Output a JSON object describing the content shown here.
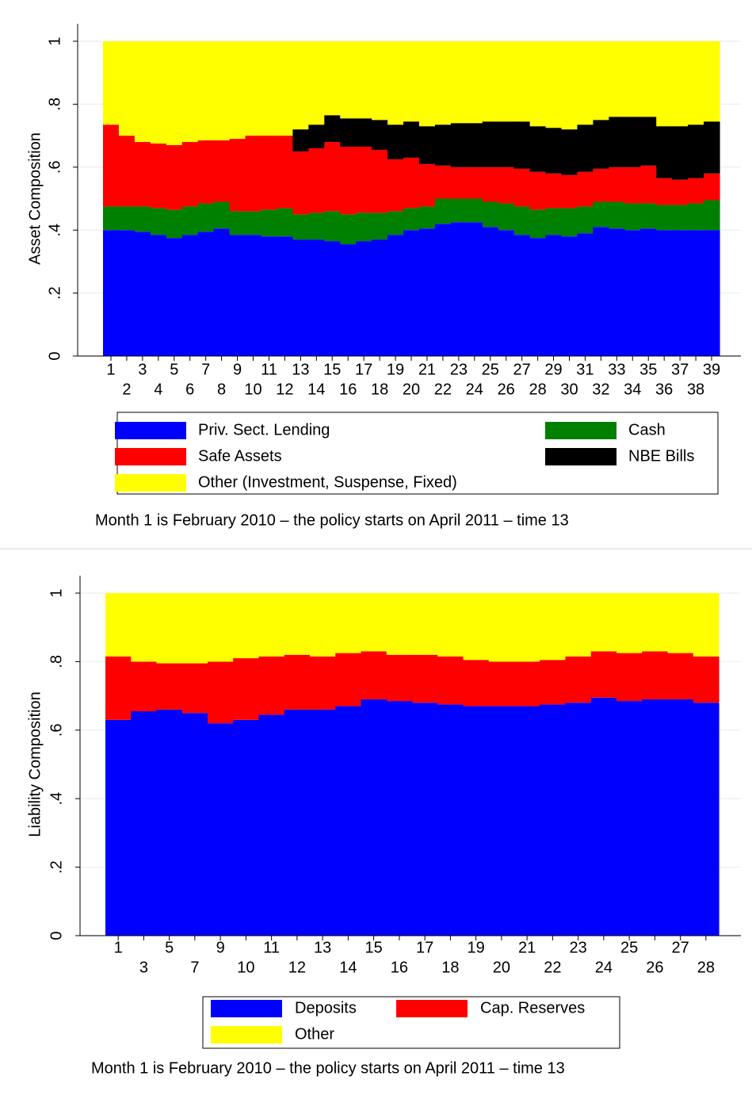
{
  "chart_data": [
    {
      "type": "bar",
      "stacked": true,
      "ylabel": "Asset Composition",
      "note": "Month 1 is February 2010 – the policy starts on April 2011 – time 13",
      "categories": [
        "1",
        "2",
        "3",
        "4",
        "5",
        "6",
        "7",
        "8",
        "9",
        "10",
        "11",
        "12",
        "13",
        "14",
        "15",
        "16",
        "17",
        "18",
        "19",
        "20",
        "21",
        "22",
        "23",
        "24",
        "25",
        "26",
        "27",
        "28",
        "29",
        "30",
        "31",
        "32",
        "33",
        "34",
        "35",
        "36",
        "37",
        "38",
        "39"
      ],
      "series": [
        {
          "name": "Priv. Sect. Lending",
          "color": "#0000ff",
          "values": [
            0.4,
            0.4,
            0.395,
            0.385,
            0.375,
            0.385,
            0.395,
            0.405,
            0.385,
            0.385,
            0.38,
            0.38,
            0.37,
            0.37,
            0.365,
            0.355,
            0.365,
            0.37,
            0.385,
            0.4,
            0.405,
            0.42,
            0.425,
            0.425,
            0.41,
            0.4,
            0.385,
            0.375,
            0.385,
            0.38,
            0.39,
            0.41,
            0.405,
            0.4,
            0.405,
            0.4,
            0.4,
            0.4,
            0.4
          ]
        },
        {
          "name": "Cash",
          "color": "#008000",
          "values": [
            0.075,
            0.075,
            0.08,
            0.085,
            0.09,
            0.09,
            0.09,
            0.085,
            0.075,
            0.075,
            0.085,
            0.09,
            0.08,
            0.085,
            0.095,
            0.095,
            0.09,
            0.085,
            0.075,
            0.07,
            0.07,
            0.08,
            0.075,
            0.075,
            0.08,
            0.085,
            0.09,
            0.09,
            0.085,
            0.09,
            0.085,
            0.08,
            0.085,
            0.085,
            0.08,
            0.08,
            0.08,
            0.085,
            0.095
          ]
        },
        {
          "name": "Safe Assets",
          "color": "#ff0000",
          "values": [
            0.26,
            0.225,
            0.205,
            0.205,
            0.205,
            0.205,
            0.2,
            0.195,
            0.23,
            0.24,
            0.235,
            0.23,
            0.2,
            0.205,
            0.22,
            0.215,
            0.21,
            0.2,
            0.165,
            0.16,
            0.135,
            0.105,
            0.1,
            0.1,
            0.11,
            0.115,
            0.12,
            0.12,
            0.11,
            0.105,
            0.11,
            0.105,
            0.11,
            0.115,
            0.12,
            0.085,
            0.08,
            0.08,
            0.085
          ]
        },
        {
          "name": "NBE Bills",
          "color": "#000000",
          "values": [
            0,
            0,
            0,
            0,
            0,
            0,
            0,
            0,
            0,
            0,
            0,
            0,
            0.07,
            0.075,
            0.085,
            0.09,
            0.09,
            0.095,
            0.11,
            0.115,
            0.12,
            0.13,
            0.14,
            0.14,
            0.145,
            0.145,
            0.15,
            0.145,
            0.145,
            0.145,
            0.15,
            0.155,
            0.16,
            0.16,
            0.155,
            0.165,
            0.17,
            0.17,
            0.165
          ]
        },
        {
          "name": "Other (Investment, Suspense, Fixed)",
          "color": "#ffff00",
          "values": [
            0.265,
            0.3,
            0.32,
            0.325,
            0.33,
            0.32,
            0.315,
            0.315,
            0.31,
            0.3,
            0.3,
            0.3,
            0.28,
            0.265,
            0.235,
            0.245,
            0.245,
            0.25,
            0.265,
            0.255,
            0.27,
            0.265,
            0.26,
            0.26,
            0.255,
            0.255,
            0.255,
            0.27,
            0.275,
            0.28,
            0.265,
            0.25,
            0.24,
            0.24,
            0.24,
            0.27,
            0.27,
            0.265,
            0.255
          ]
        }
      ],
      "ylim": [
        0,
        1
      ],
      "yticks": [
        0,
        {
          "value": 0.2,
          "label": ".2"
        },
        {
          "value": 0.4,
          "label": ".4"
        },
        {
          "value": 0.6,
          "label": ".6"
        },
        {
          "value": 0.8,
          "label": ".8"
        },
        1
      ],
      "grid": true,
      "legend": "bottom"
    },
    {
      "type": "bar",
      "stacked": true,
      "ylabel": "Liability Composition",
      "note": "Month 1 is February 2010 – the policy starts on April 2011 – time 13",
      "categories": [
        "1",
        "3",
        "5",
        "7",
        "9",
        "10",
        "11",
        "12",
        "13",
        "14",
        "15",
        "16",
        "17",
        "18",
        "19",
        "20",
        "21",
        "22",
        "23",
        "24",
        "25",
        "26",
        "27",
        "28"
      ],
      "series": [
        {
          "name": "Deposits",
          "color": "#0000ff",
          "values": [
            0.63,
            0.655,
            0.66,
            0.65,
            0.62,
            0.63,
            0.645,
            0.66,
            0.66,
            0.67,
            0.69,
            0.685,
            0.68,
            0.675,
            0.67,
            0.67,
            0.67,
            0.675,
            0.68,
            0.695,
            0.685,
            0.69,
            0.69,
            0.68
          ]
        },
        {
          "name": "Cap. Reserves",
          "color": "#ff0000",
          "values": [
            0.185,
            0.145,
            0.135,
            0.145,
            0.18,
            0.18,
            0.17,
            0.16,
            0.155,
            0.155,
            0.14,
            0.135,
            0.14,
            0.14,
            0.135,
            0.13,
            0.13,
            0.13,
            0.135,
            0.135,
            0.14,
            0.14,
            0.135,
            0.135
          ]
        },
        {
          "name": "Other",
          "color": "#ffff00",
          "values": [
            0.185,
            0.2,
            0.205,
            0.205,
            0.2,
            0.19,
            0.185,
            0.18,
            0.185,
            0.175,
            0.17,
            0.18,
            0.18,
            0.185,
            0.195,
            0.2,
            0.2,
            0.195,
            0.185,
            0.17,
            0.175,
            0.17,
            0.175,
            0.185
          ]
        }
      ],
      "ylim": [
        0,
        1
      ],
      "yticks": [
        0,
        {
          "value": 0.2,
          "label": ".2"
        },
        {
          "value": 0.4,
          "label": ".4"
        },
        {
          "value": 0.6,
          "label": ".6"
        },
        {
          "value": 0.8,
          "label": ".8"
        },
        1
      ],
      "grid": true,
      "legend": "bottom"
    }
  ]
}
